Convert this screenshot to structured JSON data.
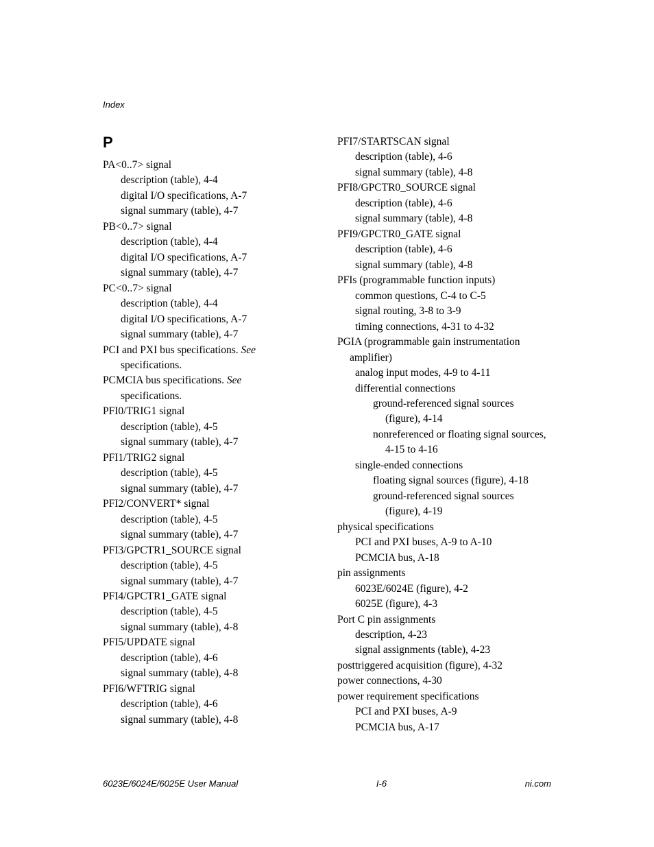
{
  "header": "Index",
  "section_letter": "P",
  "footer": {
    "left": "6023E/6024E/6025E User Manual",
    "center": "I-6",
    "right": "ni.com"
  },
  "left_col": [
    {
      "lvl": 0,
      "t": "PA<0..7> signal"
    },
    {
      "lvl": 1,
      "t": "description (table), 4-4"
    },
    {
      "lvl": 1,
      "t": "digital I/O specifications, A-7"
    },
    {
      "lvl": 1,
      "t": "signal summary (table), 4-7"
    },
    {
      "lvl": 0,
      "t": "PB<0..7> signal"
    },
    {
      "lvl": 1,
      "t": "description (table), 4-4"
    },
    {
      "lvl": 1,
      "t": "digital I/O specifications, A-7"
    },
    {
      "lvl": 1,
      "t": "signal summary (table), 4-7"
    },
    {
      "lvl": 0,
      "t": "PC<0..7> signal"
    },
    {
      "lvl": 1,
      "t": "description (table), 4-4"
    },
    {
      "lvl": 1,
      "t": "digital I/O specifications, A-7"
    },
    {
      "lvl": 1,
      "t": "signal summary (table), 4-7"
    },
    {
      "lvl": 0,
      "html": "PCI and PXI bus specifications. <span class=\"see\">See</span> "
    },
    {
      "lvl": 1,
      "t": "specifications."
    },
    {
      "lvl": 0,
      "html": "PCMCIA bus specifications. <span class=\"see\">See</span> "
    },
    {
      "lvl": 1,
      "t": "specifications."
    },
    {
      "lvl": 0,
      "t": "PFI0/TRIG1 signal"
    },
    {
      "lvl": 1,
      "t": "description (table), 4-5"
    },
    {
      "lvl": 1,
      "t": "signal summary (table), 4-7"
    },
    {
      "lvl": 0,
      "t": "PFI1/TRIG2 signal"
    },
    {
      "lvl": 1,
      "t": "description (table), 4-5"
    },
    {
      "lvl": 1,
      "t": "signal summary (table), 4-7"
    },
    {
      "lvl": 0,
      "t": "PFI2/CONVERT* signal"
    },
    {
      "lvl": 1,
      "t": "description (table), 4-5"
    },
    {
      "lvl": 1,
      "t": "signal summary (table), 4-7"
    },
    {
      "lvl": 0,
      "t": "PFI3/GPCTR1_SOURCE signal"
    },
    {
      "lvl": 1,
      "t": "description (table), 4-5"
    },
    {
      "lvl": 1,
      "t": "signal summary (table), 4-7"
    },
    {
      "lvl": 0,
      "t": "PFI4/GPCTR1_GATE signal"
    },
    {
      "lvl": 1,
      "t": "description (table), 4-5"
    },
    {
      "lvl": 1,
      "t": "signal summary (table), 4-8"
    },
    {
      "lvl": 0,
      "t": "PFI5/UPDATE signal"
    },
    {
      "lvl": 1,
      "t": "description (table), 4-6"
    },
    {
      "lvl": 1,
      "t": "signal summary (table), 4-8"
    },
    {
      "lvl": 0,
      "t": "PFI6/WFTRIG signal"
    },
    {
      "lvl": 1,
      "t": "description (table), 4-6"
    },
    {
      "lvl": 1,
      "t": "signal summary (table), 4-8"
    }
  ],
  "right_col": [
    {
      "lvl": 0,
      "t": "PFI7/STARTSCAN signal"
    },
    {
      "lvl": 1,
      "t": "description (table), 4-6"
    },
    {
      "lvl": 1,
      "t": "signal summary (table), 4-8"
    },
    {
      "lvl": 0,
      "t": "PFI8/GPCTR0_SOURCE signal"
    },
    {
      "lvl": 1,
      "t": "description (table), 4-6"
    },
    {
      "lvl": 1,
      "t": "signal summary (table), 4-8"
    },
    {
      "lvl": 0,
      "t": "PFI9/GPCTR0_GATE signal"
    },
    {
      "lvl": 1,
      "t": "description (table), 4-6"
    },
    {
      "lvl": 1,
      "t": "signal summary (table), 4-8"
    },
    {
      "lvl": 0,
      "t": "PFIs (programmable function inputs)"
    },
    {
      "lvl": 1,
      "t": "common questions, C-4 to C-5"
    },
    {
      "lvl": 1,
      "t": "signal routing, 3-8 to 3-9"
    },
    {
      "lvl": 1,
      "t": "timing connections, 4-31 to 4-32"
    },
    {
      "lvl": 0,
      "t": "PGIA (programmable gain instrumentation amplifier)",
      "hang": true
    },
    {
      "lvl": 1,
      "t": "analog input modes, 4-9 to 4-11"
    },
    {
      "lvl": 1,
      "t": "differential connections"
    },
    {
      "lvl": 2,
      "t": "ground-referenced signal sources (figure), 4-14",
      "hang": true
    },
    {
      "lvl": 2,
      "t": "nonreferenced or floating signal sources, 4-15 to 4-16",
      "hang": true
    },
    {
      "lvl": 1,
      "t": "single-ended connections"
    },
    {
      "lvl": 2,
      "t": "floating signal sources (figure), 4-18"
    },
    {
      "lvl": 2,
      "t": "ground-referenced signal sources (figure), 4-19",
      "hang": true
    },
    {
      "lvl": 0,
      "t": "physical specifications"
    },
    {
      "lvl": 1,
      "t": "PCI and PXI buses, A-9 to A-10"
    },
    {
      "lvl": 1,
      "t": "PCMCIA bus, A-18"
    },
    {
      "lvl": 0,
      "t": "pin assignments"
    },
    {
      "lvl": 1,
      "t": "6023E/6024E (figure), 4-2"
    },
    {
      "lvl": 1,
      "t": "6025E (figure), 4-3"
    },
    {
      "lvl": 0,
      "t": "Port C pin assignments"
    },
    {
      "lvl": 1,
      "t": "description, 4-23"
    },
    {
      "lvl": 1,
      "t": "signal assignments (table), 4-23"
    },
    {
      "lvl": 0,
      "t": "posttriggered acquisition (figure), 4-32"
    },
    {
      "lvl": 0,
      "t": "power connections, 4-30"
    },
    {
      "lvl": 0,
      "t": "power requirement specifications"
    },
    {
      "lvl": 1,
      "t": "PCI and PXI buses, A-9"
    },
    {
      "lvl": 1,
      "t": "PCMCIA bus, A-17"
    }
  ]
}
